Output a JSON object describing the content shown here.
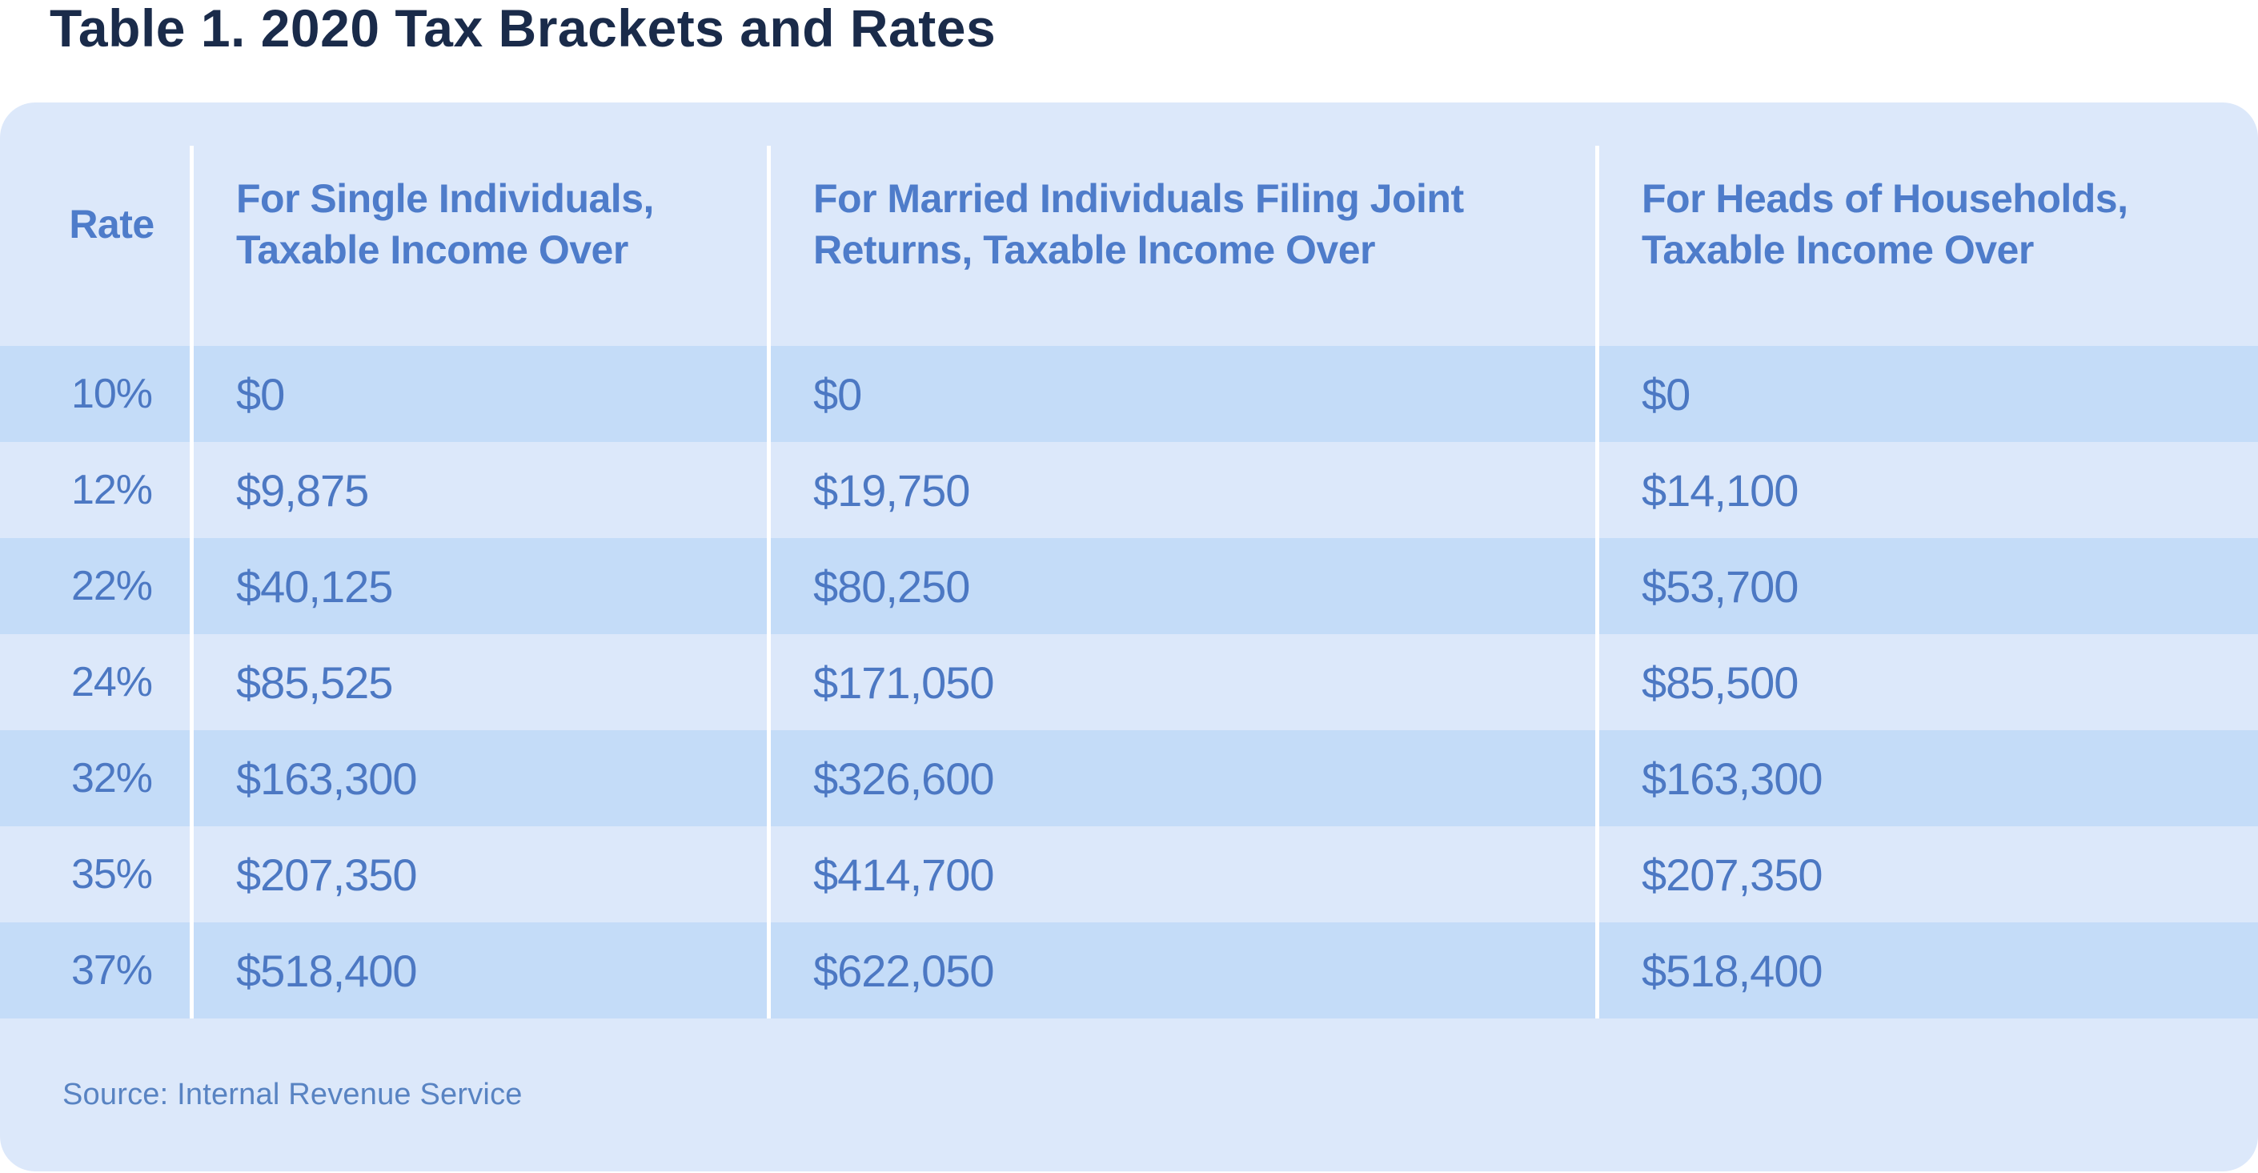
{
  "title": "Table 1. 2020 Tax Brackets and Rates",
  "source_note": "Source: Internal Revenue Service",
  "chart_data": {
    "type": "table",
    "title": "Table 1. 2020 Tax Brackets and Rates",
    "columns": [
      "Rate",
      "For Single Individuals, Taxable Income Over",
      "For Married Individuals Filing Joint Returns, Taxable Income Over",
      "For Heads of Households, Taxable Income Over"
    ],
    "rows": [
      [
        "10%",
        "$0",
        "$0",
        "$0"
      ],
      [
        "12%",
        "$9,875",
        "$19,750",
        "$14,100"
      ],
      [
        "22%",
        "$40,125",
        "$80,250",
        "$53,700"
      ],
      [
        "24%",
        "$85,525",
        "$171,050",
        "$85,500"
      ],
      [
        "32%",
        "$163,300",
        "$326,600",
        "$163,300"
      ],
      [
        "35%",
        "$207,350",
        "$414,700",
        "$207,350"
      ],
      [
        "37%",
        "$518,400",
        "$622,050",
        "$518,400"
      ]
    ],
    "source": "Source: Internal Revenue Service",
    "layout": {
      "striped_rows": "odd",
      "grid": "off",
      "header_position": "top"
    }
  },
  "colors": {
    "page-bg": "#ffffff",
    "card-bg": "#dce8fa",
    "stripe": "#c4dcf8",
    "divider": "#ffffff",
    "title": "#1a2b4a",
    "header-text": "#4e7cca",
    "value-text": "#4c78c3",
    "source-text": "#5883c2"
  }
}
